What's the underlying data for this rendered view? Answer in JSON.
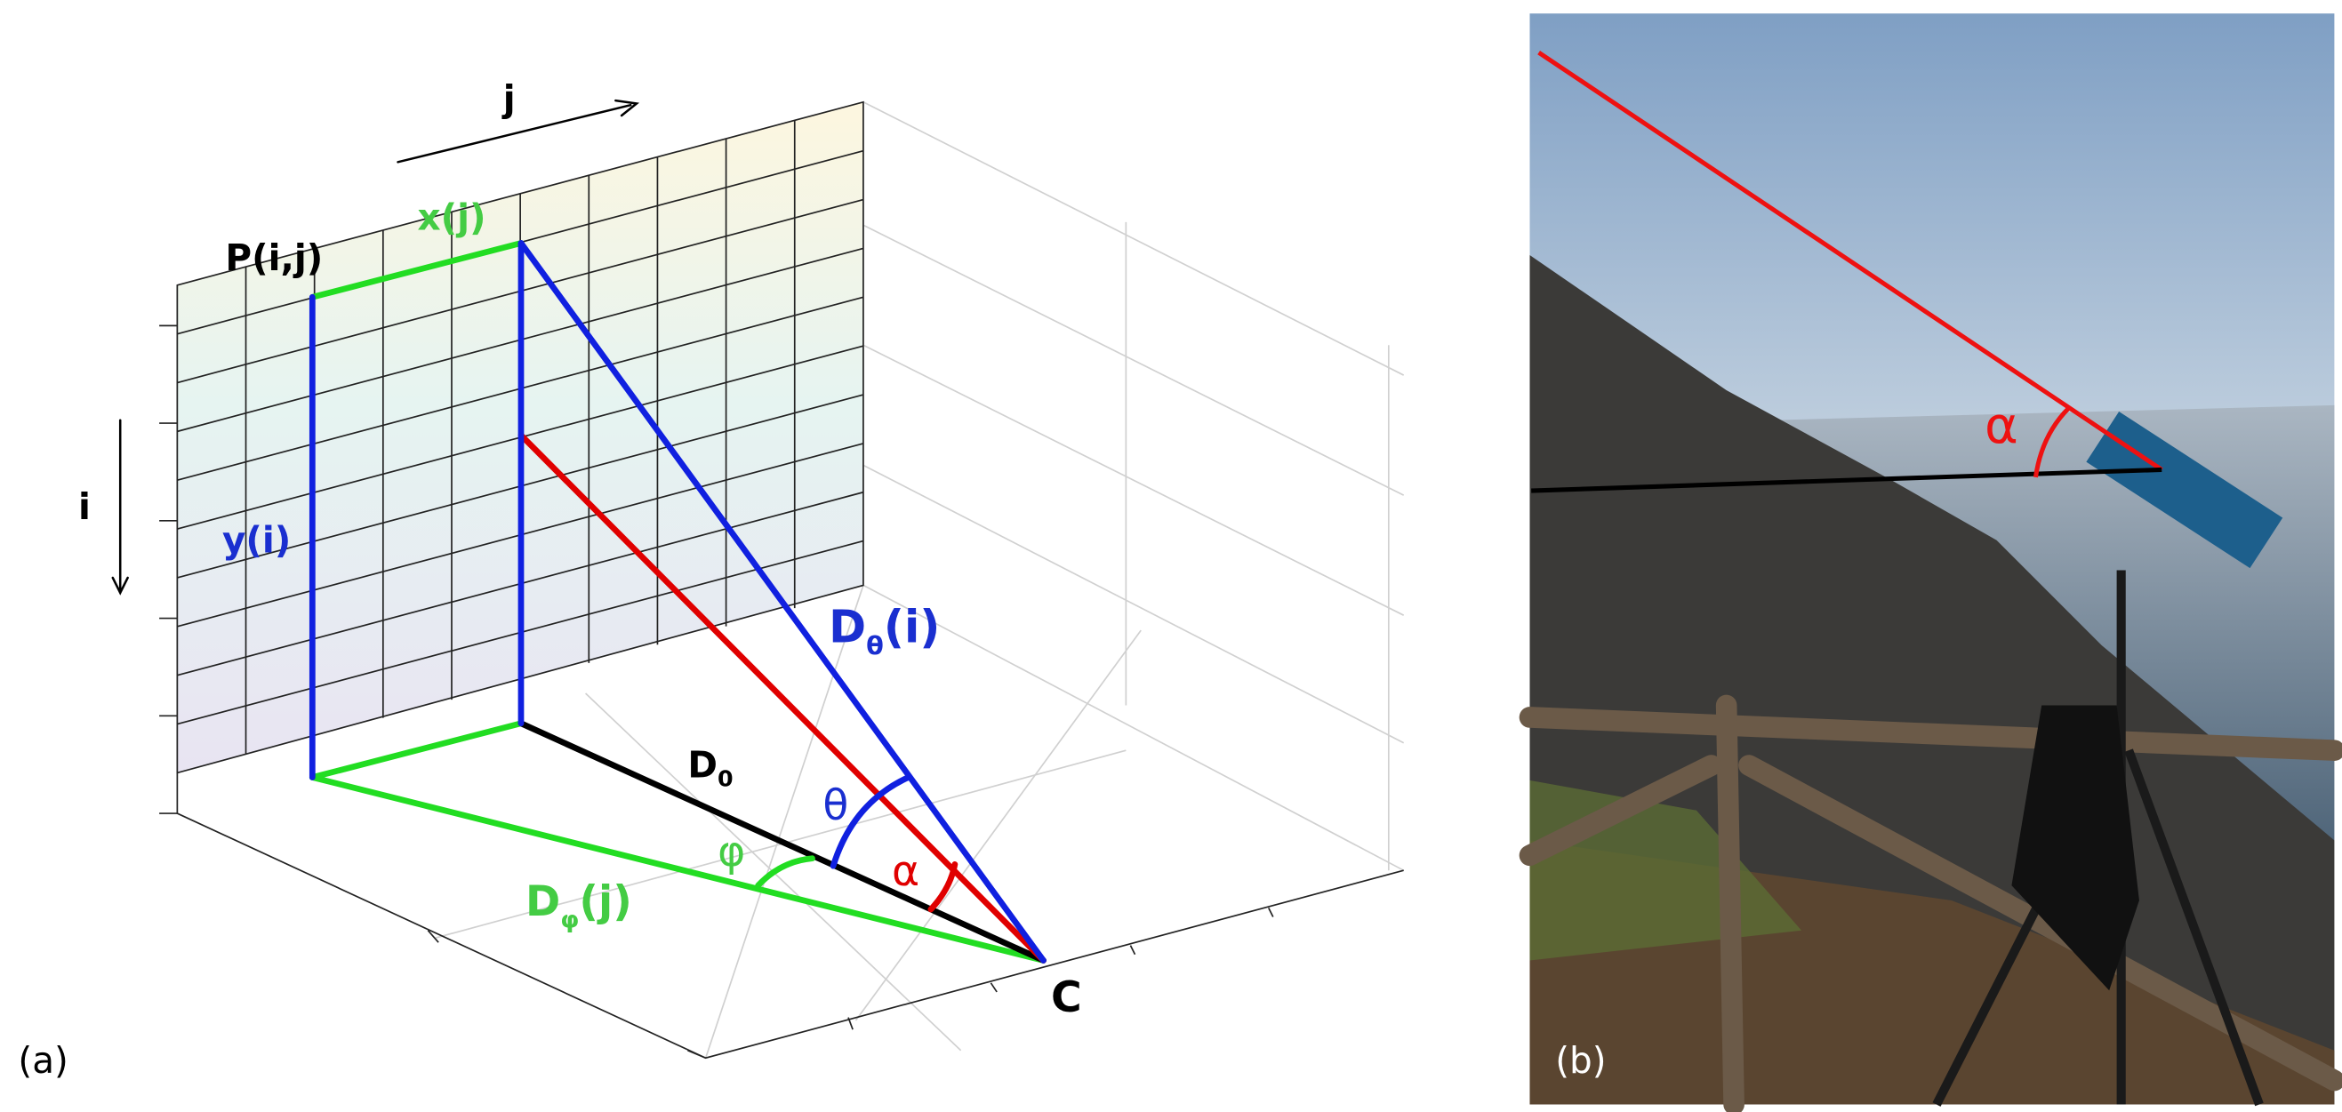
{
  "panel_a": {
    "label": "(a)",
    "axis_j": "j",
    "axis_i": "i",
    "point": "P(i,j)",
    "x_len": "x(j)",
    "y_len": "y(i)",
    "d_theta": {
      "base": "D",
      "sub": "θ",
      "arg": "(i)"
    },
    "d_zero": {
      "base": "D",
      "sub": "0"
    },
    "d_phi": {
      "base": "D",
      "sub": "φ",
      "arg": "(j)"
    },
    "theta": "θ",
    "alpha": "α",
    "phi": "φ",
    "camera": "C"
  },
  "panel_b": {
    "label": "(b)",
    "alpha": "α"
  }
}
